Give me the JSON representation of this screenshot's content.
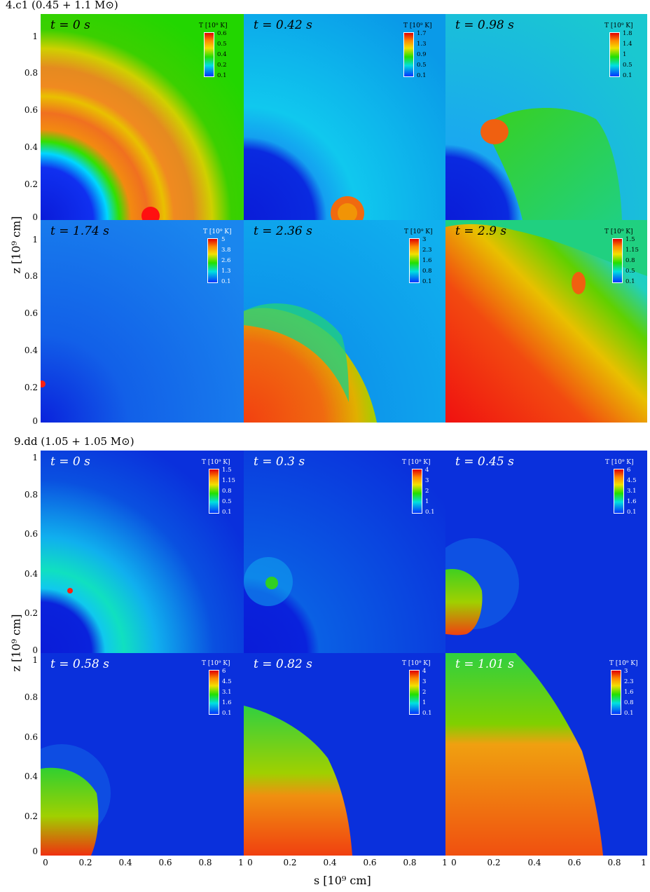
{
  "chart_data": [
    {
      "type": "heatmap",
      "title": "4.c1 (0.45 + 1.1 M⊙)",
      "xlabel": "s [10⁹ cm]",
      "ylabel": "z [10⁹ cm]",
      "xlim": [
        0,
        1
      ],
      "ylim": [
        0,
        1.1
      ],
      "yticks": [
        "0",
        "0.2",
        "0.4",
        "0.6",
        "0.8",
        "1"
      ],
      "colorbar_title": "T [10⁹ K]",
      "panels": [
        {
          "time": "t = 0 s",
          "colorbar_ticks": [
            "0.6",
            "0.5",
            "0.4",
            "0.2",
            "0.1"
          ]
        },
        {
          "time": "t = 0.42 s",
          "colorbar_ticks": [
            "1.7",
            "1.3",
            "0.9",
            "0.5",
            "0.1"
          ]
        },
        {
          "time": "t = 0.98 s",
          "colorbar_ticks": [
            "1.8",
            "1.4",
            "1",
            "0.5",
            "0.1"
          ]
        },
        {
          "time": "t = 1.74 s",
          "colorbar_ticks": [
            "5",
            "3.8",
            "2.6",
            "1.3",
            "0.1"
          ]
        },
        {
          "time": "t = 2.36 s",
          "colorbar_ticks": [
            "3",
            "2.3",
            "1.6",
            "0.8",
            "0.1"
          ]
        },
        {
          "time": "t = 2.9 s",
          "colorbar_ticks": [
            "1.5",
            "1.15",
            "0.8",
            "0.5",
            "0.1"
          ]
        }
      ]
    },
    {
      "type": "heatmap",
      "title": "9.dd (1.05 + 1.05 M⊙)",
      "xlabel": "s [10⁹ cm]",
      "ylabel": "z [10⁹ cm]",
      "xlim": [
        0,
        1
      ],
      "ylim": [
        0,
        1
      ],
      "xticks": [
        "0",
        "0.2",
        "0.4",
        "0.6",
        "0.8",
        "1"
      ],
      "yticks": [
        "0",
        "0.2",
        "0.4",
        "0.6",
        "0.8",
        "1"
      ],
      "colorbar_title": "T [10⁹ K]",
      "panels": [
        {
          "time": "t = 0 s",
          "colorbar_ticks": [
            "1.5",
            "1.15",
            "0.8",
            "0.5",
            "0.1"
          ]
        },
        {
          "time": "t = 0.3 s",
          "colorbar_ticks": [
            "4",
            "3",
            "2",
            "1",
            "0.1"
          ]
        },
        {
          "time": "t = 0.45 s",
          "colorbar_ticks": [
            "6",
            "4.5",
            "3.1",
            "1.6",
            "0.1"
          ]
        },
        {
          "time": "t = 0.58 s",
          "colorbar_ticks": [
            "6",
            "4.5",
            "3.1",
            "1.6",
            "0.1"
          ]
        },
        {
          "time": "t = 0.82 s",
          "colorbar_ticks": [
            "4",
            "3",
            "2",
            "1",
            "0.1"
          ]
        },
        {
          "time": "t = 1.01 s",
          "colorbar_ticks": [
            "3",
            "2.3",
            "1.6",
            "0.8",
            "0.1"
          ]
        }
      ]
    }
  ]
}
